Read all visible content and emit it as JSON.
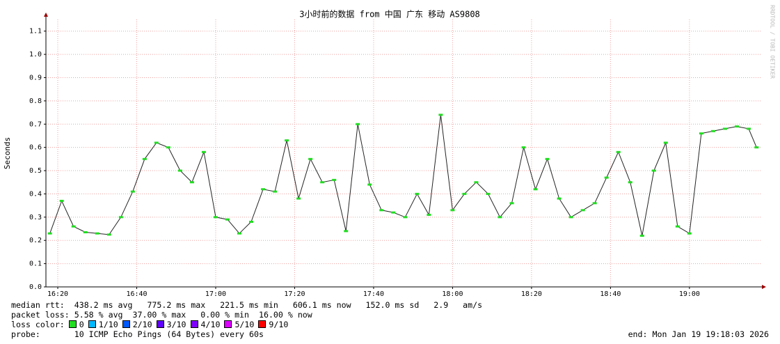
{
  "chart_data": {
    "type": "line",
    "title": "3小时前的数据 from 中国 广东 移动 AS9808",
    "y_label": "Seconds",
    "side_label": "RRDTOOL / TOBI OETIKER",
    "x": [
      "16:18",
      "16:21",
      "16:24",
      "16:27",
      "16:30",
      "16:33",
      "16:36",
      "16:39",
      "16:42",
      "16:45",
      "16:48",
      "16:51",
      "16:54",
      "16:57",
      "17:00",
      "17:03",
      "17:06",
      "17:09",
      "17:12",
      "17:15",
      "17:18",
      "17:21",
      "17:24",
      "17:27",
      "17:30",
      "17:33",
      "17:36",
      "17:39",
      "17:42",
      "17:45",
      "17:48",
      "17:51",
      "17:54",
      "17:57",
      "18:00",
      "18:03",
      "18:06",
      "18:09",
      "18:12",
      "18:15",
      "18:18",
      "18:21",
      "18:24",
      "18:27",
      "18:30",
      "18:33",
      "18:36",
      "18:39",
      "18:42",
      "18:45",
      "18:48",
      "18:51",
      "18:54",
      "18:57",
      "19:00",
      "19:03",
      "19:06",
      "19:09",
      "19:12",
      "19:15",
      "19:17"
    ],
    "series": [
      {
        "color": "#22dd22",
        "values": [
          0.23,
          0.37,
          0.26,
          0.235,
          0.23,
          0.225,
          0.3,
          0.41,
          0.55,
          0.62,
          0.6,
          0.5,
          0.45,
          0.58,
          0.3,
          0.29,
          0.23,
          0.28,
          0.42,
          0.41,
          0.63,
          0.38,
          0.55,
          0.45,
          0.46,
          0.24,
          0.7,
          0.44,
          0.33,
          0.32,
          0.3,
          0.4,
          0.31,
          0.74,
          0.33,
          0.4,
          0.45,
          0.4,
          0.3,
          0.36,
          0.6,
          0.42,
          0.55,
          0.38,
          0.3,
          0.33,
          0.36,
          0.47,
          0.58,
          0.45,
          0.22,
          0.5,
          0.62,
          0.26,
          0.23,
          0.66,
          0.67,
          0.68,
          0.69,
          0.68,
          0.6
        ]
      }
    ],
    "xlim": [
      "16:17",
      "19:18"
    ],
    "xticks": [
      "16:20",
      "16:40",
      "17:00",
      "17:20",
      "17:40",
      "18:00",
      "18:20",
      "18:40",
      "19:00"
    ],
    "ylim": [
      0,
      1.15
    ],
    "yticks": [
      {
        "value": 0,
        "label": "0.0"
      },
      0.1,
      0.2,
      0.3,
      0.4,
      0.5,
      0.6,
      0.7,
      0.8,
      0.9,
      {
        "value": 1,
        "label": "1.0"
      },
      1.1
    ],
    "grid": true,
    "footer": {
      "rtt": "median rtt:  438.2 ms avg   775.2 ms max   221.5 ms min   606.1 ms now   152.0 ms sd   2.9   am/s",
      "loss": "packet loss: 5.58 % avg  37.00 % max   0.00 % min  16.00 % now",
      "loss_color_label": "loss color:",
      "loss_colors": [
        {
          "label": "0",
          "color": "#22dd22"
        },
        {
          "label": "1/10",
          "color": "#00b8ff"
        },
        {
          "label": "2/10",
          "color": "#0059ff"
        },
        {
          "label": "3/10",
          "color": "#5e00ff"
        },
        {
          "label": "4/10",
          "color": "#7e00ff"
        },
        {
          "label": "5/10",
          "color": "#dd00ff"
        },
        {
          "label": "9/10",
          "color": "#ff0000"
        }
      ],
      "probe": "probe:       10 ICMP Echo Pings (64 Bytes) every 60s",
      "end": "end: Mon Jan 19 19:18:03 2026"
    }
  }
}
